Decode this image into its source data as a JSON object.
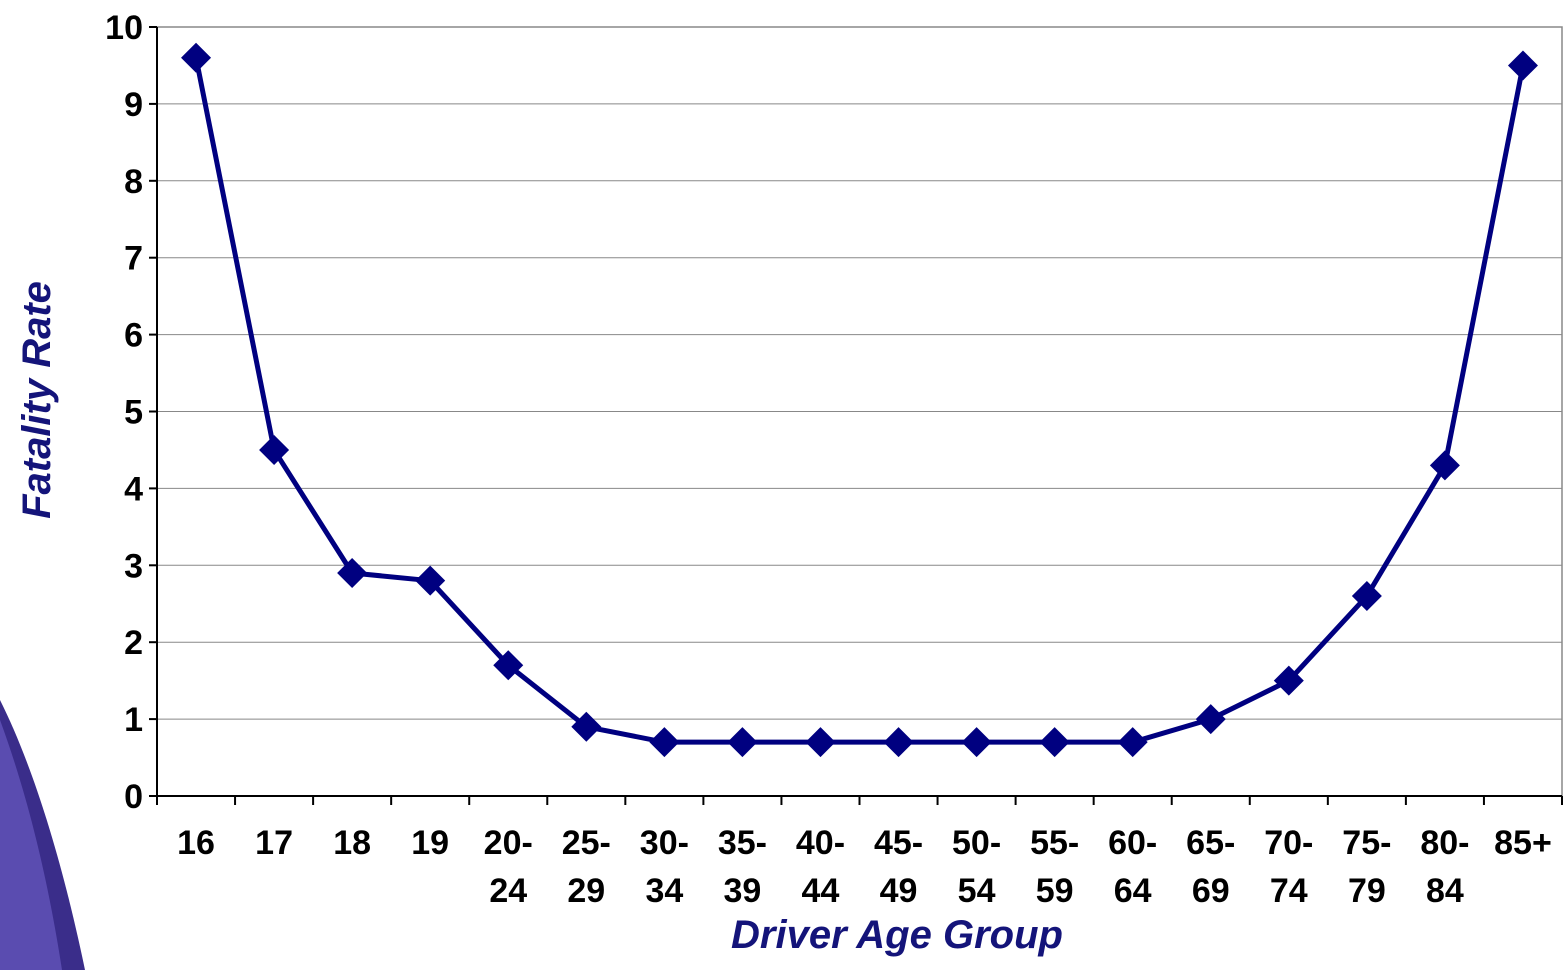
{
  "chart_data": {
    "type": "line",
    "x_label": "Driver Age Group",
    "y_label": "Fatality Rate",
    "categories": [
      "16",
      "17",
      "18",
      "19",
      "20-24",
      "25-29",
      "30-34",
      "35-39",
      "40-44",
      "45-49",
      "50-54",
      "55-59",
      "60-64",
      "65-69",
      "70-74",
      "75-79",
      "80-84",
      "85+"
    ],
    "series": [
      {
        "name": "Fatality Rate",
        "color": "#000080",
        "values": [
          9.6,
          4.5,
          2.9,
          2.8,
          1.7,
          0.9,
          0.7,
          0.7,
          0.7,
          0.7,
          0.7,
          0.7,
          0.7,
          1.0,
          1.5,
          2.6,
          4.3,
          9.5
        ]
      }
    ],
    "ylim": [
      0,
      10
    ],
    "yticks": [
      0,
      1,
      2,
      3,
      4,
      5,
      6,
      7,
      8,
      9,
      10
    ],
    "grid": true
  }
}
